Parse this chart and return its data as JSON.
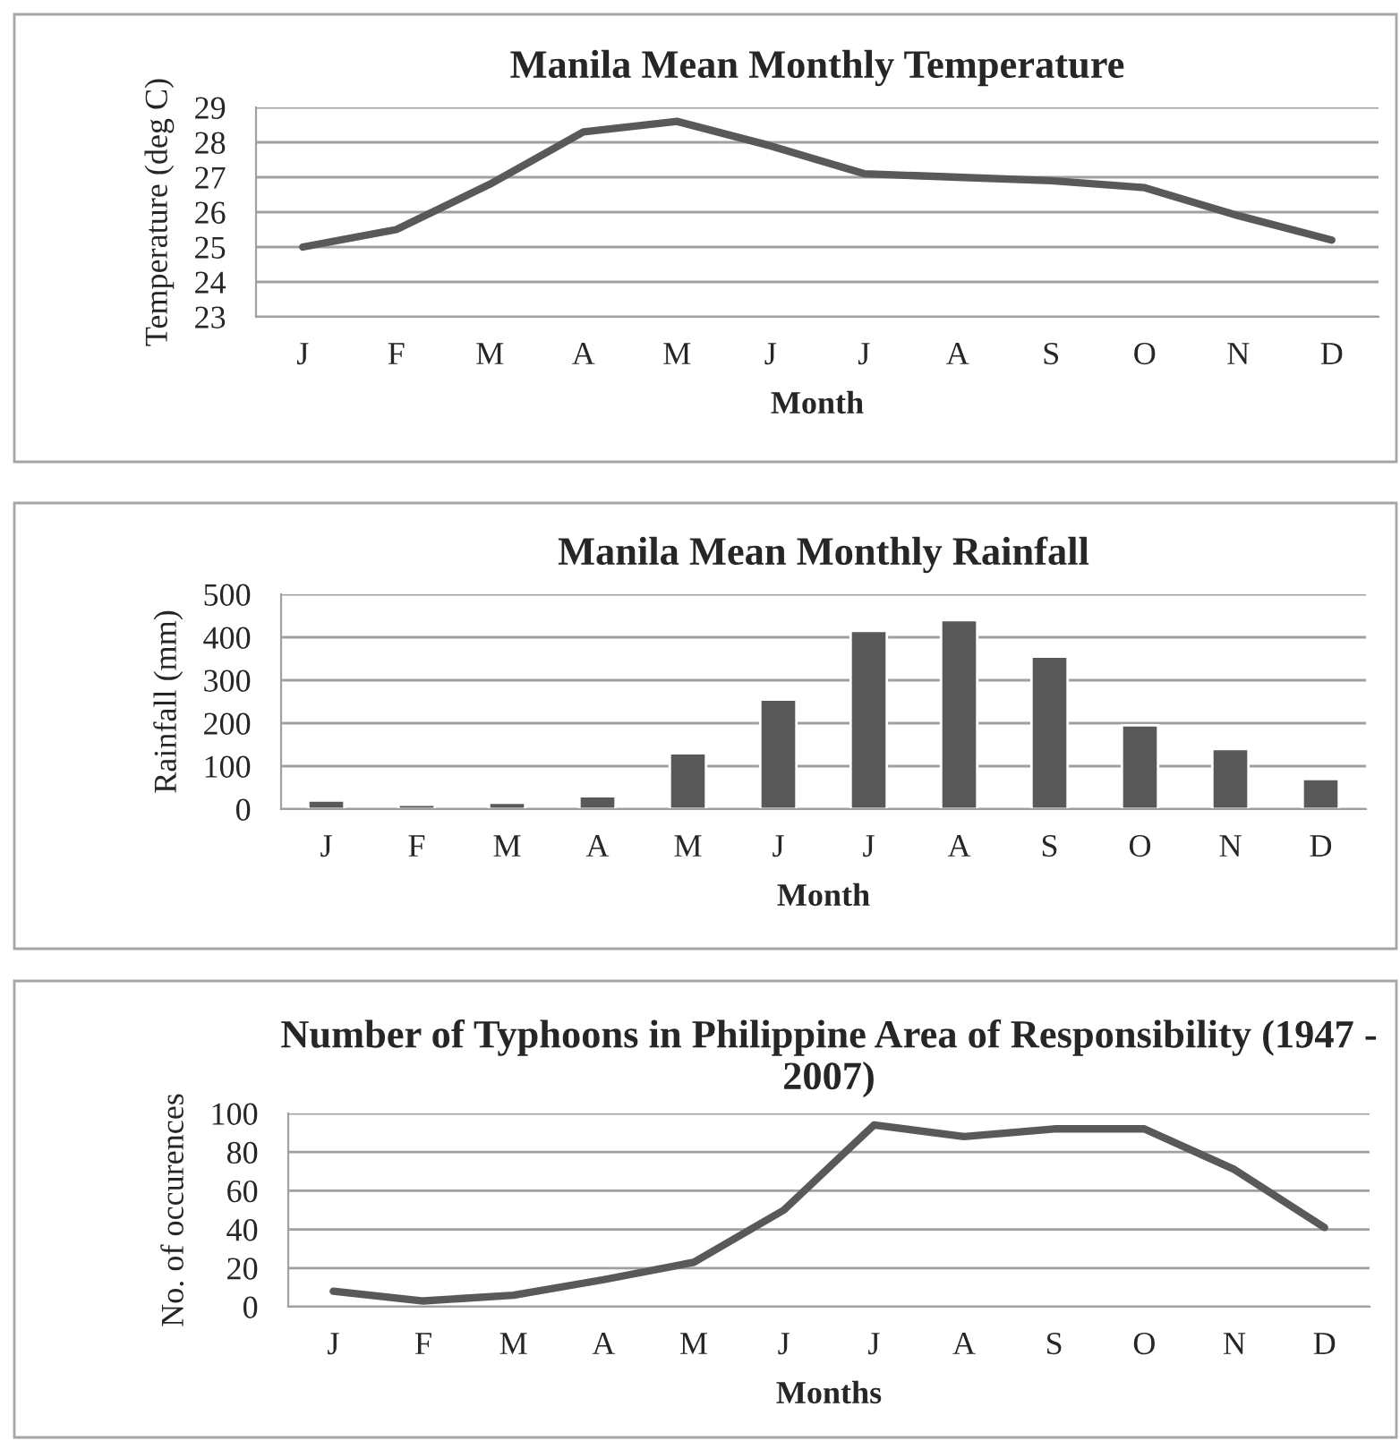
{
  "chart_data": [
    {
      "type": "line",
      "title": "Manila Mean Monthly Temperature",
      "xlabel": "Month",
      "ylabel": "Temperature (deg C)",
      "categories": [
        "J",
        "F",
        "M",
        "A",
        "M",
        "J",
        "J",
        "A",
        "S",
        "O",
        "N",
        "D"
      ],
      "series": [
        {
          "color": "#595959",
          "values": [
            25.0,
            25.5,
            26.8,
            28.3,
            28.6,
            27.9,
            27.1,
            27.0,
            26.9,
            26.7,
            25.9,
            25.2
          ]
        }
      ],
      "ylim": [
        23,
        29
      ],
      "yticks": [
        23,
        24,
        25,
        26,
        27,
        28,
        29
      ],
      "grid": "y",
      "legend": false,
      "marker": "none",
      "line_style": "solid"
    },
    {
      "type": "bar",
      "title": "Manila Mean Monthly Rainfall",
      "xlabel": "Month",
      "ylabel": "Rainfall (mm)",
      "categories": [
        "J",
        "F",
        "M",
        "A",
        "M",
        "J",
        "J",
        "A",
        "S",
        "O",
        "N",
        "D"
      ],
      "series": [
        {
          "color": "#595959",
          "values": [
            20,
            10,
            15,
            30,
            130,
            255,
            415,
            440,
            355,
            195,
            140,
            70
          ]
        }
      ],
      "ylim": [
        0,
        500
      ],
      "yticks": [
        0,
        100,
        200,
        300,
        400,
        500
      ],
      "grid": "y",
      "legend": false
    },
    {
      "type": "line",
      "title": "Number of Typhoons in Philippine Area of Responsibility (1947 - 2007)",
      "xlabel": "Months",
      "ylabel": "No. of occurences",
      "categories": [
        "J",
        "F",
        "M",
        "A",
        "M",
        "J",
        "J",
        "A",
        "S",
        "O",
        "N",
        "D"
      ],
      "series": [
        {
          "color": "#595959",
          "values": [
            8,
            3,
            6,
            14,
            23,
            50,
            94,
            88,
            92,
            92,
            71,
            41
          ]
        }
      ],
      "ylim": [
        0,
        100
      ],
      "yticks": [
        0,
        20,
        40,
        60,
        80,
        100
      ],
      "grid": "y",
      "legend": false,
      "marker": "none",
      "line_style": "solid"
    }
  ]
}
